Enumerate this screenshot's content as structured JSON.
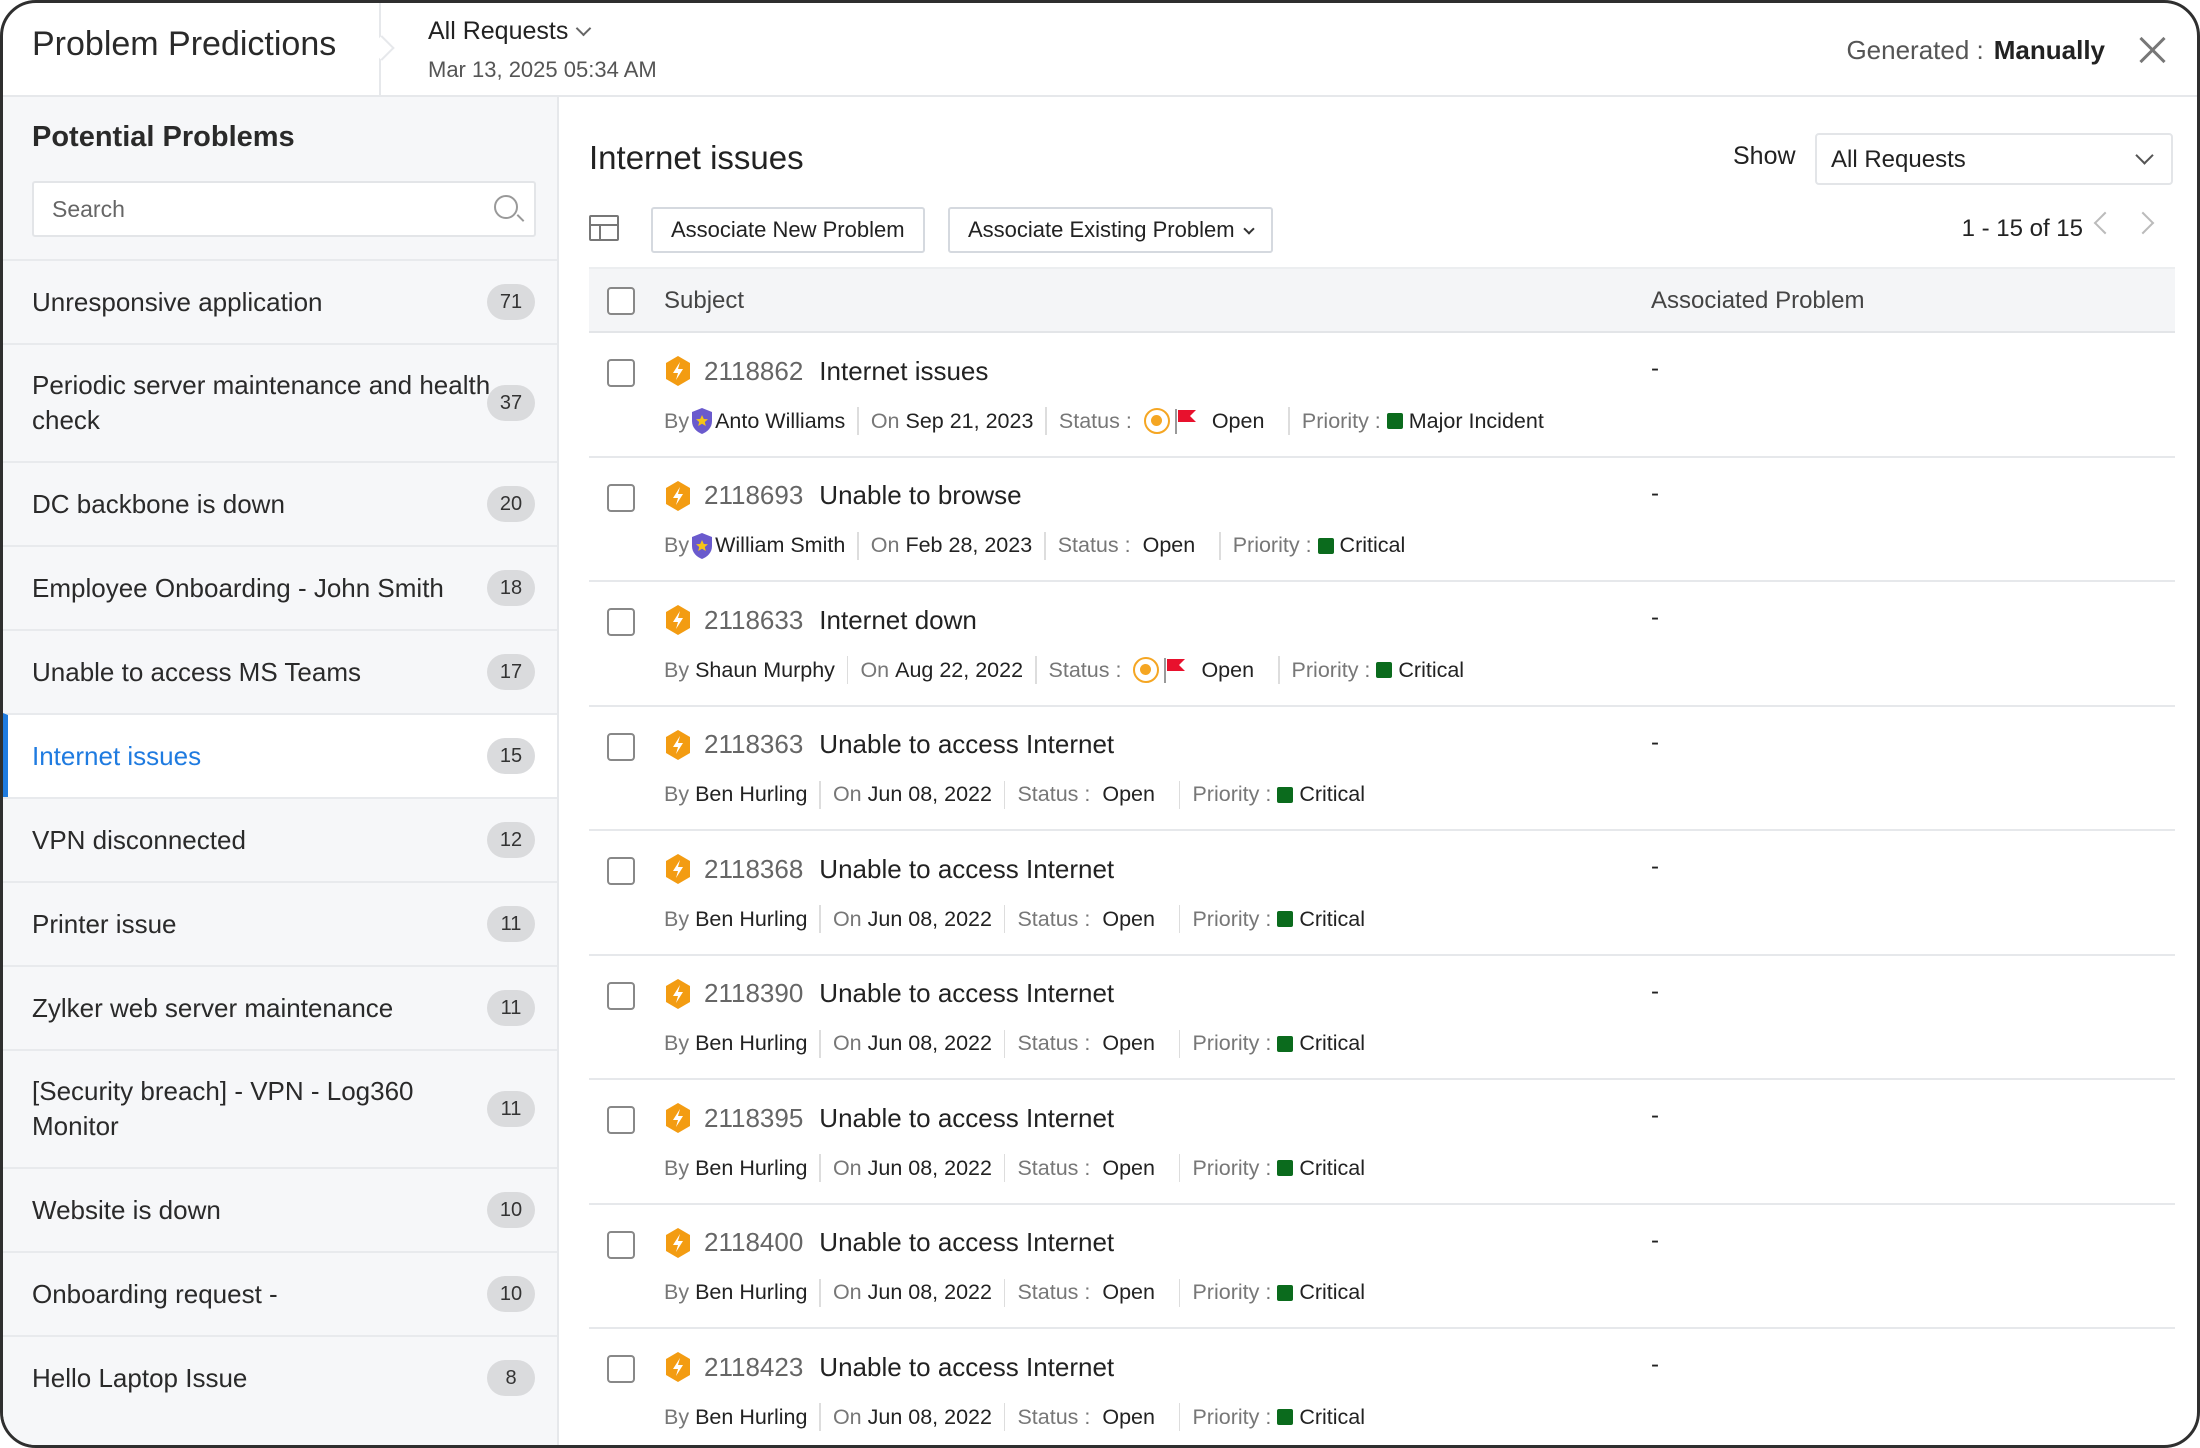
{
  "header": {
    "title": "Problem Predictions",
    "view": "All Requests",
    "generated_at": "Mar 13, 2025 05:34 AM",
    "generated_label": "Generated :",
    "generated_value": "Manually"
  },
  "sidebar": {
    "title": "Potential Problems",
    "search_placeholder": "Search",
    "selected": "Internet issues",
    "items": [
      {
        "label": "Unresponsive application",
        "count": "71"
      },
      {
        "label": "Periodic server maintenance and health check",
        "count": "37"
      },
      {
        "label": "DC backbone is down",
        "count": "20"
      },
      {
        "label": "Employee Onboarding - John Smith",
        "count": "18"
      },
      {
        "label": "Unable to access MS Teams",
        "count": "17"
      },
      {
        "label": "Internet issues",
        "count": "15"
      },
      {
        "label": "VPN disconnected",
        "count": "12"
      },
      {
        "label": "Printer issue",
        "count": "11"
      },
      {
        "label": "Zylker web server maintenance",
        "count": "11"
      },
      {
        "label": "[Security breach] - VPN - Log360 Monitor",
        "count": "11"
      },
      {
        "label": "Website is down",
        "count": "10"
      },
      {
        "label": "Onboarding request -",
        "count": "10"
      },
      {
        "label": "Hello Laptop Issue",
        "count": "8"
      }
    ]
  },
  "main": {
    "title": "Internet issues",
    "show_label": "Show",
    "show_value": "All Requests",
    "associate_new": "Associate New Problem",
    "associate_existing": "Associate Existing Problem",
    "pagination": "1 - 15 of 15",
    "columns": [
      "Subject",
      "Associated Problem"
    ],
    "labels": {
      "by": "By",
      "on": "On",
      "status": "Status :",
      "priority": "Priority :"
    },
    "colors": {
      "request_icon": "#f39c12",
      "priority_green": "#0b6b1d",
      "flag": "#e8112d",
      "shield": "#6a5acd",
      "accent": "#1f7be0"
    },
    "rows": [
      {
        "id": "2118862",
        "subject": "Internet issues",
        "by": "Anto Williams",
        "shield": true,
        "on": "Sep 21, 2023",
        "status": "Open",
        "status_icons": true,
        "priority": "Major Incident",
        "associated": "-"
      },
      {
        "id": "2118693",
        "subject": "Unable to browse",
        "by": "William Smith",
        "shield": true,
        "on": "Feb 28, 2023",
        "status": "Open",
        "status_icons": false,
        "priority": "Critical",
        "associated": "-"
      },
      {
        "id": "2118633",
        "subject": "Internet down",
        "by": "Shaun Murphy",
        "shield": false,
        "on": "Aug 22, 2022",
        "status": "Open",
        "status_icons": true,
        "priority": "Critical",
        "associated": "-"
      },
      {
        "id": "2118363",
        "subject": "Unable to access Internet",
        "by": "Ben Hurling",
        "shield": false,
        "on": "Jun 08, 2022",
        "status": "Open",
        "status_icons": false,
        "priority": "Critical",
        "associated": "-"
      },
      {
        "id": "2118368",
        "subject": "Unable to access Internet",
        "by": "Ben Hurling",
        "shield": false,
        "on": "Jun 08, 2022",
        "status": "Open",
        "status_icons": false,
        "priority": "Critical",
        "associated": "-"
      },
      {
        "id": "2118390",
        "subject": "Unable to access Internet",
        "by": "Ben Hurling",
        "shield": false,
        "on": "Jun 08, 2022",
        "status": "Open",
        "status_icons": false,
        "priority": "Critical",
        "associated": "-"
      },
      {
        "id": "2118395",
        "subject": "Unable to access Internet",
        "by": "Ben Hurling",
        "shield": false,
        "on": "Jun 08, 2022",
        "status": "Open",
        "status_icons": false,
        "priority": "Critical",
        "associated": "-"
      },
      {
        "id": "2118400",
        "subject": "Unable to access Internet",
        "by": "Ben Hurling",
        "shield": false,
        "on": "Jun 08, 2022",
        "status": "Open",
        "status_icons": false,
        "priority": "Critical",
        "associated": "-"
      },
      {
        "id": "2118423",
        "subject": "Unable to access Internet",
        "by": "Ben Hurling",
        "shield": false,
        "on": "Jun 08, 2022",
        "status": "Open",
        "status_icons": false,
        "priority": "Critical",
        "associated": "-"
      }
    ]
  }
}
